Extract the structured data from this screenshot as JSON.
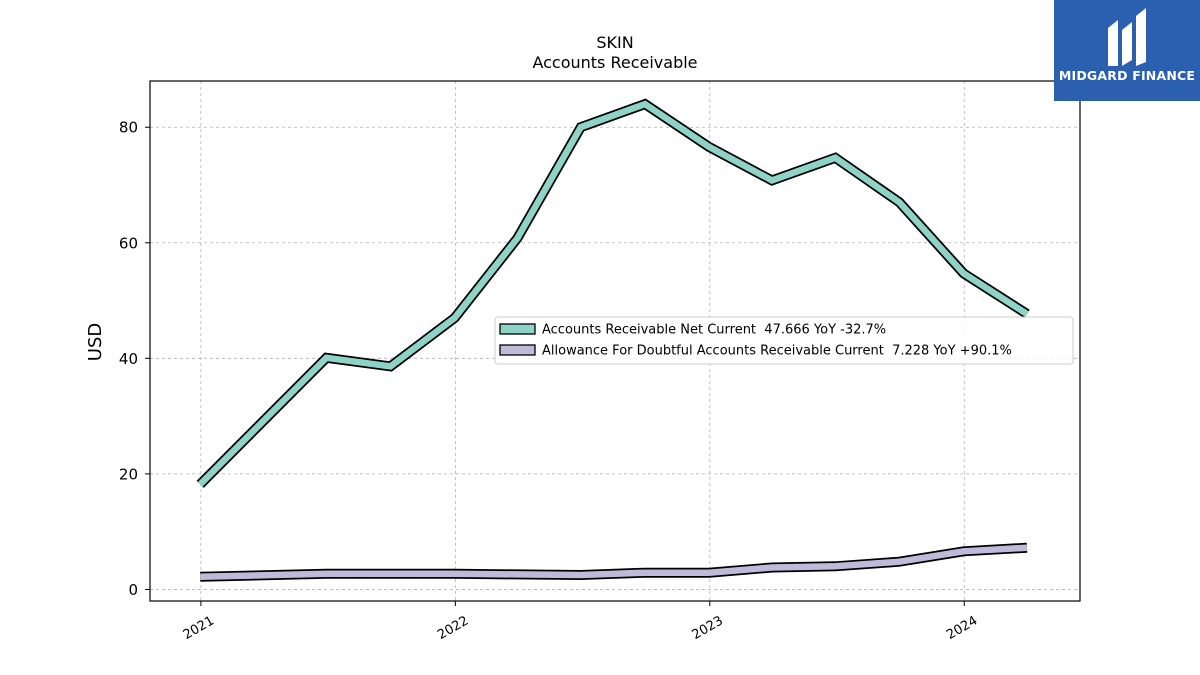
{
  "header": {
    "title": "SKIN",
    "subtitle": "Accounts Receivable"
  },
  "brand": {
    "name": "MIDGARD FINANCE",
    "color": "#2b5fb0"
  },
  "chart_data": {
    "type": "line",
    "ylabel": "USD",
    "ylim": [
      -2,
      88
    ],
    "yticks": [
      0,
      20,
      40,
      60,
      80
    ],
    "xlim": [
      "2020-10-20",
      "2024-06-15"
    ],
    "xticks": [
      "2021",
      "2022",
      "2023",
      "2024"
    ],
    "grid": true,
    "legend_position": "center-right",
    "x": [
      "2020-12-31",
      "2021-06-30",
      "2021-09-30",
      "2021-12-31",
      "2022-03-31",
      "2022-06-30",
      "2022-09-30",
      "2022-12-31",
      "2023-03-31",
      "2023-06-30",
      "2023-09-30",
      "2023-12-31",
      "2024-03-31"
    ],
    "series": [
      {
        "name": "Accounts Receivable Net Current  47.666 YoY -32.7%",
        "color": "#8dd3c7",
        "values": [
          18.2,
          40.1,
          38.6,
          47.0,
          60.8,
          80.0,
          84.0,
          76.6,
          70.8,
          74.7,
          67.0,
          54.7,
          47.666
        ]
      },
      {
        "name": "Allowance For Doubtful Accounts Receivable Current  7.228 YoY +90.1%",
        "color": "#bebada",
        "values": [
          2.2,
          2.7,
          2.7,
          2.7,
          2.6,
          2.5,
          2.9,
          2.9,
          3.8,
          4.0,
          4.8,
          6.6,
          7.228
        ]
      }
    ]
  }
}
